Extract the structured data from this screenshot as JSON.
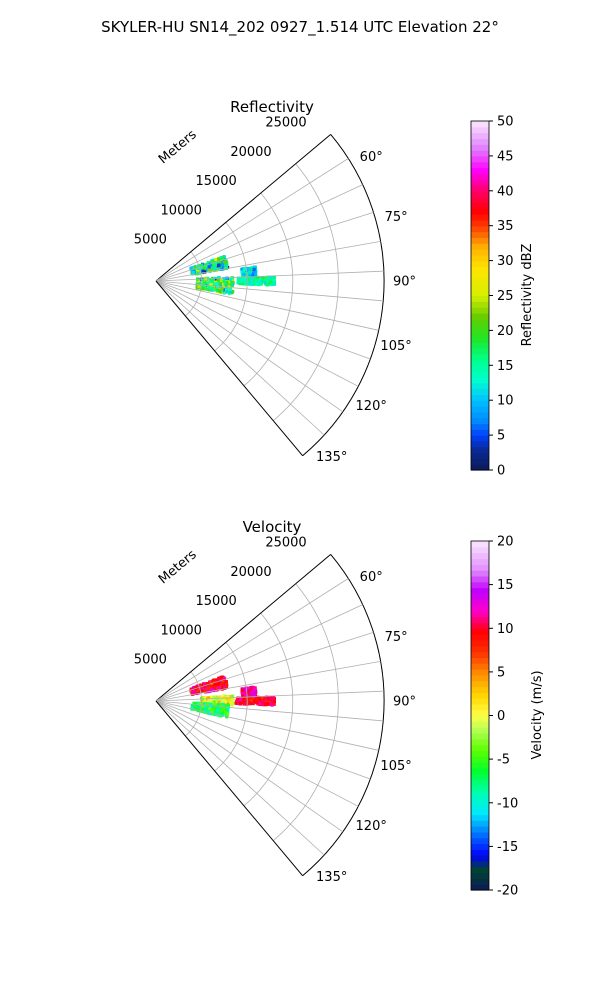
{
  "figure": {
    "suptitle": "SKYLER-HU  SN14_202  0927_1.514 UTC Elevation 22°"
  },
  "chart_data": [
    {
      "type": "polar-sector",
      "title": "Reflectivity",
      "radial_label": "Meters",
      "theta_range_deg": [
        50,
        140
      ],
      "r_range_m": [
        0,
        25000
      ],
      "r_ticks": [
        5000,
        10000,
        15000,
        20000,
        25000
      ],
      "theta_ticks_deg": [
        60,
        75,
        90,
        105,
        120,
        135
      ],
      "theta_tick_labels": [
        "60°",
        "75°",
        "90°",
        "105°",
        "120°",
        "135°"
      ],
      "grid": true,
      "colorbar": {
        "label": "Reflectivity dBZ",
        "range": [
          0,
          50
        ],
        "ticks": [
          0,
          5,
          10,
          15,
          20,
          25,
          30,
          35,
          40,
          45,
          50
        ],
        "colormap": "pyart_NWSRef"
      },
      "echo_regions": [
        {
          "theta_deg": [
            70,
            80
          ],
          "r_m": [
            4000,
            8000
          ],
          "value_range": [
            0,
            25
          ],
          "dominant_value": 15
        },
        {
          "theta_deg": [
            82,
            88
          ],
          "r_m": [
            9500,
            11000
          ],
          "value_range": [
            5,
            18
          ],
          "dominant_value": 12
        },
        {
          "theta_deg": [
            87,
            100
          ],
          "r_m": [
            4500,
            8500
          ],
          "value_range": [
            0,
            25
          ],
          "dominant_value": 18
        },
        {
          "theta_deg": [
            88,
            92
          ],
          "r_m": [
            9000,
            13000
          ],
          "value_range": [
            10,
            20
          ],
          "dominant_value": 15
        }
      ]
    },
    {
      "type": "polar-sector",
      "title": "Velocity",
      "radial_label": "Meters",
      "theta_range_deg": [
        50,
        140
      ],
      "r_range_m": [
        0,
        25000
      ],
      "r_ticks": [
        5000,
        10000,
        15000,
        20000,
        25000
      ],
      "theta_ticks_deg": [
        60,
        75,
        90,
        105,
        120,
        135
      ],
      "theta_tick_labels": [
        "60°",
        "75°",
        "90°",
        "105°",
        "120°",
        "135°"
      ],
      "grid": true,
      "colorbar": {
        "label": "Velocity (m/s)",
        "range": [
          -20,
          20
        ],
        "ticks": [
          -20,
          -15,
          -10,
          -5,
          0,
          5,
          10,
          15,
          20
        ],
        "colormap": "pyart_BuDRd"
      },
      "echo_regions": [
        {
          "theta_deg": [
            70,
            80
          ],
          "r_m": [
            4000,
            8000
          ],
          "value_range": [
            5,
            14
          ],
          "dominant_value": 10
        },
        {
          "theta_deg": [
            82,
            88
          ],
          "r_m": [
            9500,
            11000
          ],
          "value_range": [
            8,
            15
          ],
          "dominant_value": 12
        },
        {
          "theta_deg": [
            86,
            93
          ],
          "r_m": [
            5000,
            8500
          ],
          "value_range": [
            -6,
            4
          ],
          "dominant_value": 0
        },
        {
          "theta_deg": [
            88,
            92
          ],
          "r_m": [
            8800,
            13000
          ],
          "value_range": [
            6,
            12
          ],
          "dominant_value": 10
        },
        {
          "theta_deg": [
            93,
            103
          ],
          "r_m": [
            4000,
            8000
          ],
          "value_range": [
            -12,
            -3
          ],
          "dominant_value": -7
        }
      ]
    }
  ]
}
